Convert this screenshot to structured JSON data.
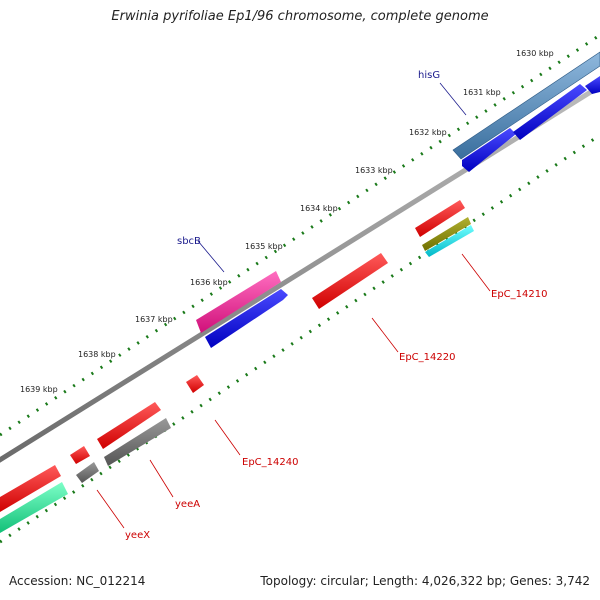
{
  "title": "Erwinia pyrifoliae Ep1/96 chromosome, complete genome",
  "accession": "Accession: NC_012214",
  "summary": "Topology: circular; Length: 4,026,322 bp; Genes: 3,742",
  "ticks": [
    "1630 kbp",
    "1631 kbp",
    "1632 kbp",
    "1633 kbp",
    "1634 kbp",
    "1635 kbp",
    "1636 kbp",
    "1637 kbp",
    "1638 kbp",
    "1639 kbp"
  ],
  "genes": {
    "hisG": "hisG",
    "sbcB": "sbcB",
    "EpC_14210": "EpC_14210",
    "EpC_14220": "EpC_14220",
    "EpC_14240": "EpC_14240",
    "yeeA": "yeeA",
    "yeeX": "yeeX"
  },
  "colors": {
    "backbone": "#808080",
    "cds_red": "#e00000",
    "cds_blue": "#0000e0",
    "gene_steelblue": "#4682b4",
    "pink": "#e0218a",
    "gray": "#666666",
    "green": "#19e68c",
    "olive": "#808000",
    "cyan": "#00cccc",
    "tick_green": "#1a7a1a"
  }
}
